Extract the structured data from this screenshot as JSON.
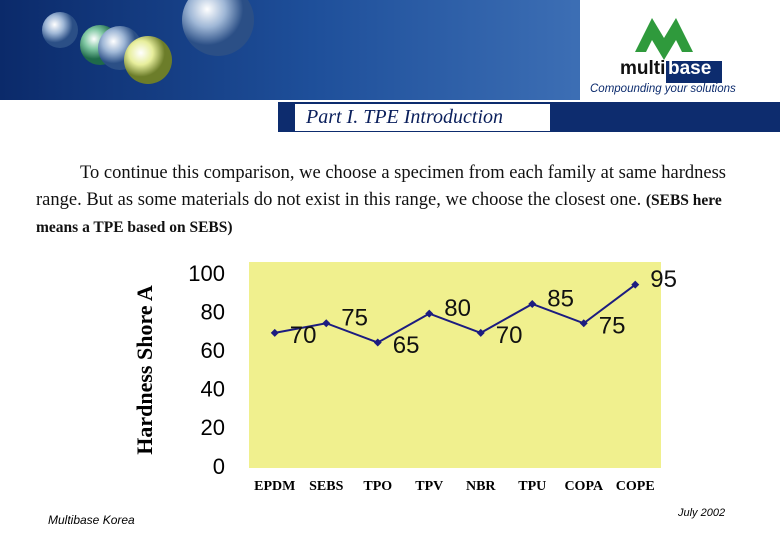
{
  "header": {
    "logo_name": [
      "multi",
      "base"
    ],
    "tagline": "Compounding your solutions",
    "section": "Part I. TPE Introduction"
  },
  "body": {
    "text": "To continue this comparison, we choose a specimen from each family at same hardness range. But as some materials do not exist in this range, we choose the closest one.",
    "note": "(SEBS here means a TPE based on SEBS)"
  },
  "chart_data": {
    "type": "line",
    "y_label": "Hardness Shore A",
    "categories": [
      "EPDM",
      "SEBS",
      "TPO",
      "TPV",
      "NBR",
      "TPU",
      "COPA",
      "COPE"
    ],
    "values": [
      70,
      75,
      65,
      80,
      70,
      85,
      75,
      95
    ],
    "color": "#1c1c80",
    "plot_background": "#f0f08e",
    "ylim": [
      0,
      100
    ],
    "yticks": [
      0,
      20,
      40,
      60,
      80,
      100
    ],
    "grid": false,
    "data_labels": true
  },
  "footer": {
    "left": "Multibase Korea",
    "right": "July  2002"
  }
}
